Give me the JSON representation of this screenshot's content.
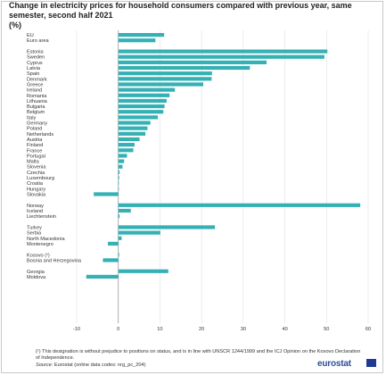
{
  "title": "Change in electricity prices for household consumers compared with previous year, same semester, second half 2021",
  "unit": "(%)",
  "footnote": "(¹) This designation is without prejudice to positions on status, and is in line with UNSCR 1244/1999 and the ICJ Opinion on the Kosovo Declaration of Independence.",
  "source_label": "Source:",
  "source_text": "Eurostat (online data codes: nrg_pc_204)",
  "logo_text": "eurostat",
  "colors": {
    "bar": "#35b0b4",
    "grid": "#d9d9d9",
    "axis": "#9a9a9a",
    "brand": "#2f4c9a"
  },
  "chart_data": {
    "type": "bar",
    "orientation": "horizontal",
    "title": "Change in electricity prices for household consumers compared with previous year, same semester, second half 2021",
    "xlim": [
      -10,
      60
    ],
    "x_ticks": [
      -10,
      0,
      10,
      20,
      30,
      40,
      50,
      60
    ],
    "grid": true,
    "categories": [
      "EU",
      "Euro area",
      "Estonia",
      "Sweden",
      "Cyprus",
      "Latvia",
      "Spain",
      "Denmark",
      "Greece",
      "Ireland",
      "Romania",
      "Lithuania",
      "Bulgaria",
      "Belgium",
      "Italy",
      "Germany",
      "Poland",
      "Netherlands",
      "Austria",
      "Finland",
      "France",
      "Portugal",
      "Malta",
      "Slovenia",
      "Czechia",
      "Luxembourg",
      "Croatia",
      "Hungary",
      "Slovakia",
      "Norway",
      "Iceland",
      "Liechtenstein",
      "Turkey",
      "Serbia",
      "North Macedonia",
      "Montenegro",
      "Kosovo (¹)",
      "Bosnia and Herzegovina",
      "Georgia",
      "Moldova"
    ],
    "values": [
      11.0,
      8.9,
      50.2,
      49.5,
      35.6,
      31.6,
      22.5,
      22.4,
      20.4,
      13.6,
      12.3,
      11.6,
      11.1,
      10.8,
      9.5,
      7.7,
      7.0,
      6.5,
      5.1,
      3.9,
      3.6,
      2.1,
      1.4,
      1.0,
      0.3,
      0.2,
      0.1,
      0.0,
      -5.9,
      58.1,
      3.0,
      0.3,
      23.2,
      10.1,
      0.8,
      -2.5,
      0.2,
      -3.7,
      12.0,
      -7.7
    ],
    "groups": [
      2,
      27,
      3,
      4,
      2,
      2
    ]
  }
}
